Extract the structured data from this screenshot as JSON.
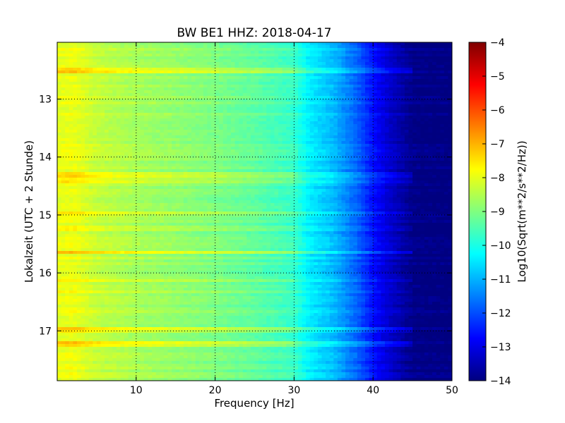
{
  "chart_data": {
    "type": "heatmap",
    "title": "BW BE1 HHZ: 2018-04-17",
    "xlabel": "Frequency [Hz]",
    "ylabel": "Lokalzeit (UTC + 2 Stunde)",
    "xlim": [
      0,
      50
    ],
    "ylim": [
      17.86,
      12.02
    ],
    "x_ticks": [
      10,
      20,
      30,
      40,
      50
    ],
    "x_tick_labels": [
      "10",
      "20",
      "30",
      "40",
      "50"
    ],
    "y_ticks": [
      13,
      14,
      15,
      16,
      17
    ],
    "y_tick_labels": [
      "13",
      "14",
      "15",
      "16",
      "17"
    ],
    "grid": true,
    "colorbar": {
      "label": "Log10(Sqrt(m**2/s**2/Hz))",
      "range": [
        -14,
        -4
      ],
      "ticks": [
        -4,
        -5,
        -6,
        -7,
        -8,
        -9,
        -10,
        -11,
        -12,
        -13,
        -14
      ],
      "tick_labels": [
        "−4",
        "−5",
        "−6",
        "−7",
        "−8",
        "−9",
        "−10",
        "−11",
        "−12",
        "−13",
        "−14"
      ],
      "colormap": "jet"
    },
    "spectrum_profile": {
      "frequency_hz": [
        0,
        2,
        5,
        10,
        15,
        20,
        25,
        30,
        32,
        35,
        38,
        40,
        42,
        45,
        50
      ],
      "log10_amplitude": [
        -8.0,
        -7.9,
        -8.3,
        -8.6,
        -8.8,
        -9.0,
        -9.3,
        -9.7,
        -10.4,
        -10.9,
        -11.8,
        -12.6,
        -13.2,
        -13.9,
        -14.0
      ]
    },
    "bright_bands": [
      {
        "time_hour": 12.52,
        "delta": 0.7
      },
      {
        "time_hour": 14.3,
        "delta": 0.6
      },
      {
        "time_hour": 14.42,
        "delta": 0.5
      },
      {
        "time_hour": 14.96,
        "delta": 0.5
      },
      {
        "time_hour": 15.25,
        "delta": 0.4
      },
      {
        "time_hour": 15.65,
        "delta": 0.8
      },
      {
        "time_hour": 16.13,
        "delta": 0.5
      },
      {
        "time_hour": 16.33,
        "delta": 0.4
      },
      {
        "time_hour": 17.0,
        "delta": 0.6
      },
      {
        "time_hour": 17.24,
        "delta": 0.7
      }
    ]
  }
}
